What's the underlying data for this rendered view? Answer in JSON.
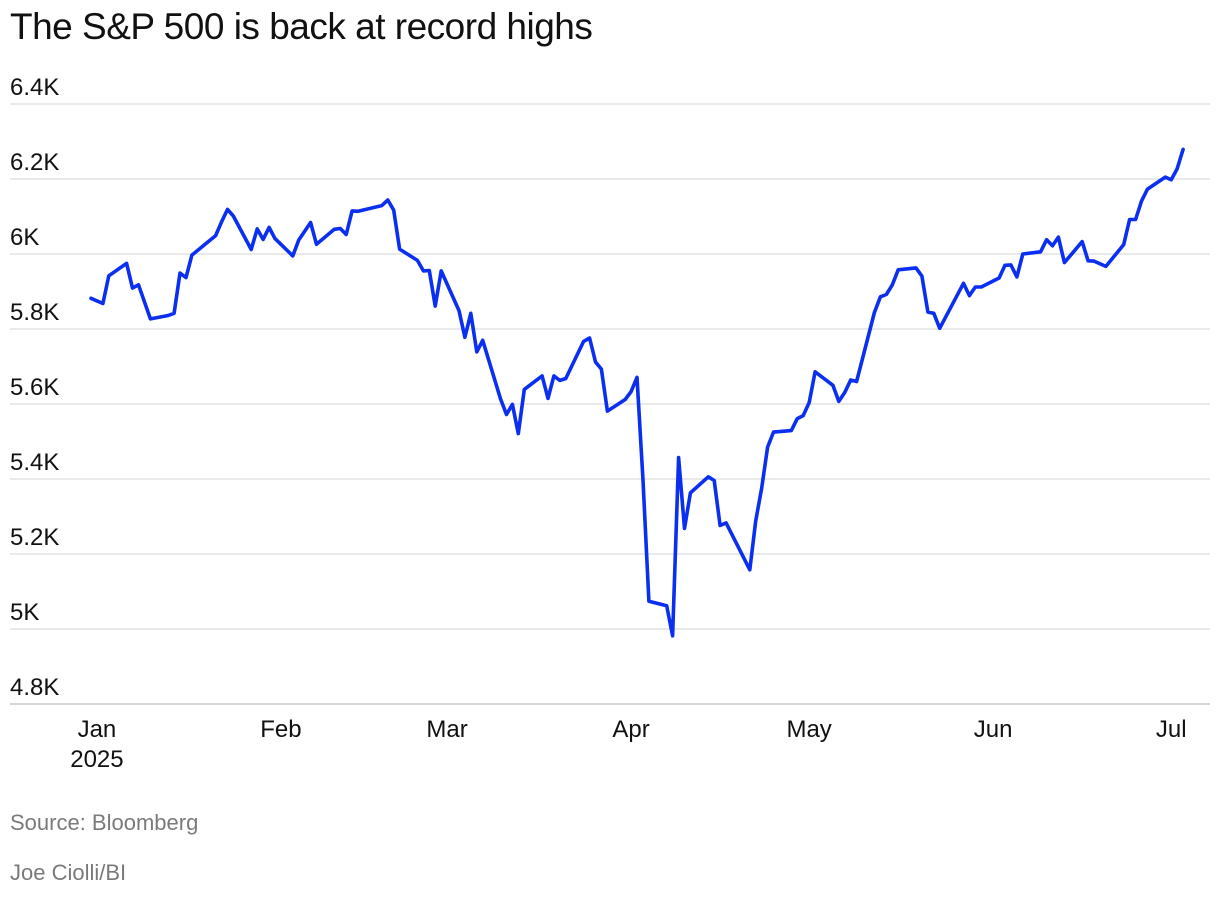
{
  "title": "The S&P 500 is back at record highs",
  "source": "Source: Bloomberg",
  "credit": "Joe Ciolli/BI",
  "colors": {
    "line": "#0a2ff0",
    "grid": "#dcdcdc",
    "muted_text": "#7a7a7a"
  },
  "chart_data": {
    "type": "line",
    "title": "The S&P 500 is back at record highs",
    "xlabel": "",
    "ylabel": "",
    "ylim": [
      4800,
      6400
    ],
    "yticks": [
      {
        "value": 4800,
        "label": "4.8K"
      },
      {
        "value": 5000,
        "label": "5K"
      },
      {
        "value": 5200,
        "label": "5.2K"
      },
      {
        "value": 5400,
        "label": "5.4K"
      },
      {
        "value": 5600,
        "label": "5.6K"
      },
      {
        "value": 5800,
        "label": "5.8K"
      },
      {
        "value": 6000,
        "label": "6K"
      },
      {
        "value": 6200,
        "label": "6.2K"
      },
      {
        "value": 6400,
        "label": "6.4K"
      }
    ],
    "xlim": [
      "2024-12-31",
      "2025-07-04"
    ],
    "xticks": [
      {
        "date": "2025-01-01",
        "label": "Jan",
        "sublabel": "2025"
      },
      {
        "date": "2025-02-01",
        "label": "Feb"
      },
      {
        "date": "2025-03-01",
        "label": "Mar"
      },
      {
        "date": "2025-04-01",
        "label": "Apr"
      },
      {
        "date": "2025-05-01",
        "label": "May"
      },
      {
        "date": "2025-06-01",
        "label": "Jun"
      },
      {
        "date": "2025-07-01",
        "label": "Jul"
      }
    ],
    "grid": true,
    "legend": "none",
    "series": [
      {
        "values": [
          [
            "2024-12-31",
            5882
          ],
          [
            "2025-01-02",
            5868
          ],
          [
            "2025-01-03",
            5942
          ],
          [
            "2025-01-06",
            5975
          ],
          [
            "2025-01-07",
            5909
          ],
          [
            "2025-01-08",
            5918
          ],
          [
            "2025-01-10",
            5827
          ],
          [
            "2025-01-13",
            5836
          ],
          [
            "2025-01-14",
            5842
          ],
          [
            "2025-01-15",
            5949
          ],
          [
            "2025-01-16",
            5937
          ],
          [
            "2025-01-17",
            5997
          ],
          [
            "2025-01-21",
            6049
          ],
          [
            "2025-01-22",
            6086
          ],
          [
            "2025-01-23",
            6119
          ],
          [
            "2025-01-24",
            6101
          ],
          [
            "2025-01-27",
            6012
          ],
          [
            "2025-01-28",
            6067
          ],
          [
            "2025-01-29",
            6039
          ],
          [
            "2025-01-30",
            6071
          ],
          [
            "2025-01-31",
            6041
          ],
          [
            "2025-02-03",
            5995
          ],
          [
            "2025-02-04",
            6037
          ],
          [
            "2025-02-06",
            6084
          ],
          [
            "2025-02-07",
            6026
          ],
          [
            "2025-02-10",
            6066
          ],
          [
            "2025-02-11",
            6068
          ],
          [
            "2025-02-12",
            6052
          ],
          [
            "2025-02-13",
            6115
          ],
          [
            "2025-02-14",
            6114
          ],
          [
            "2025-02-18",
            6129
          ],
          [
            "2025-02-19",
            6144
          ],
          [
            "2025-02-20",
            6117
          ],
          [
            "2025-02-21",
            6013
          ],
          [
            "2025-02-24",
            5983
          ],
          [
            "2025-02-25",
            5955
          ],
          [
            "2025-02-26",
            5956
          ],
          [
            "2025-02-27",
            5861
          ],
          [
            "2025-02-28",
            5955
          ],
          [
            "2025-03-03",
            5849
          ],
          [
            "2025-03-04",
            5778
          ],
          [
            "2025-03-05",
            5842
          ],
          [
            "2025-03-06",
            5739
          ],
          [
            "2025-03-07",
            5770
          ],
          [
            "2025-03-10",
            5614
          ],
          [
            "2025-03-11",
            5572
          ],
          [
            "2025-03-12",
            5599
          ],
          [
            "2025-03-13",
            5521
          ],
          [
            "2025-03-14",
            5639
          ],
          [
            "2025-03-17",
            5675
          ],
          [
            "2025-03-18",
            5615
          ],
          [
            "2025-03-19",
            5675
          ],
          [
            "2025-03-20",
            5663
          ],
          [
            "2025-03-21",
            5668
          ],
          [
            "2025-03-24",
            5767
          ],
          [
            "2025-03-25",
            5776
          ],
          [
            "2025-03-26",
            5712
          ],
          [
            "2025-03-27",
            5693
          ],
          [
            "2025-03-28",
            5581
          ],
          [
            "2025-03-31",
            5612
          ],
          [
            "2025-04-01",
            5633
          ],
          [
            "2025-04-02",
            5671
          ],
          [
            "2025-04-03",
            5397
          ],
          [
            "2025-04-04",
            5074
          ],
          [
            "2025-04-07",
            5062
          ],
          [
            "2025-04-08",
            4982
          ],
          [
            "2025-04-09",
            5457
          ],
          [
            "2025-04-10",
            5268
          ],
          [
            "2025-04-11",
            5363
          ],
          [
            "2025-04-14",
            5406
          ],
          [
            "2025-04-15",
            5396
          ],
          [
            "2025-04-16",
            5276
          ],
          [
            "2025-04-17",
            5283
          ],
          [
            "2025-04-21",
            5158
          ],
          [
            "2025-04-22",
            5288
          ],
          [
            "2025-04-23",
            5376
          ],
          [
            "2025-04-24",
            5485
          ],
          [
            "2025-04-25",
            5525
          ],
          [
            "2025-04-28",
            5529
          ],
          [
            "2025-04-29",
            5561
          ],
          [
            "2025-04-30",
            5569
          ],
          [
            "2025-05-01",
            5604
          ],
          [
            "2025-05-02",
            5686
          ],
          [
            "2025-05-05",
            5650
          ],
          [
            "2025-05-06",
            5607
          ],
          [
            "2025-05-07",
            5631
          ],
          [
            "2025-05-08",
            5664
          ],
          [
            "2025-05-09",
            5660
          ],
          [
            "2025-05-12",
            5844
          ],
          [
            "2025-05-13",
            5886
          ],
          [
            "2025-05-14",
            5892
          ],
          [
            "2025-05-15",
            5917
          ],
          [
            "2025-05-16",
            5958
          ],
          [
            "2025-05-19",
            5963
          ],
          [
            "2025-05-20",
            5941
          ],
          [
            "2025-05-21",
            5845
          ],
          [
            "2025-05-22",
            5842
          ],
          [
            "2025-05-23",
            5802
          ],
          [
            "2025-05-27",
            5922
          ],
          [
            "2025-05-28",
            5889
          ],
          [
            "2025-05-29",
            5912
          ],
          [
            "2025-05-30",
            5912
          ],
          [
            "2025-06-02",
            5936
          ],
          [
            "2025-06-03",
            5970
          ],
          [
            "2025-06-04",
            5971
          ],
          [
            "2025-06-05",
            5939
          ],
          [
            "2025-06-06",
            6000
          ],
          [
            "2025-06-09",
            6006
          ],
          [
            "2025-06-10",
            6038
          ],
          [
            "2025-06-11",
            6022
          ],
          [
            "2025-06-12",
            6045
          ],
          [
            "2025-06-13",
            5977
          ],
          [
            "2025-06-16",
            6033
          ],
          [
            "2025-06-17",
            5982
          ],
          [
            "2025-06-18",
            5981
          ],
          [
            "2025-06-20",
            5967
          ],
          [
            "2025-06-23",
            6025
          ],
          [
            "2025-06-24",
            6092
          ],
          [
            "2025-06-25",
            6092
          ],
          [
            "2025-06-26",
            6141
          ],
          [
            "2025-06-27",
            6173
          ],
          [
            "2025-06-30",
            6205
          ],
          [
            "2025-07-01",
            6198
          ],
          [
            "2025-07-02",
            6227
          ],
          [
            "2025-07-03",
            6279
          ]
        ]
      }
    ]
  }
}
